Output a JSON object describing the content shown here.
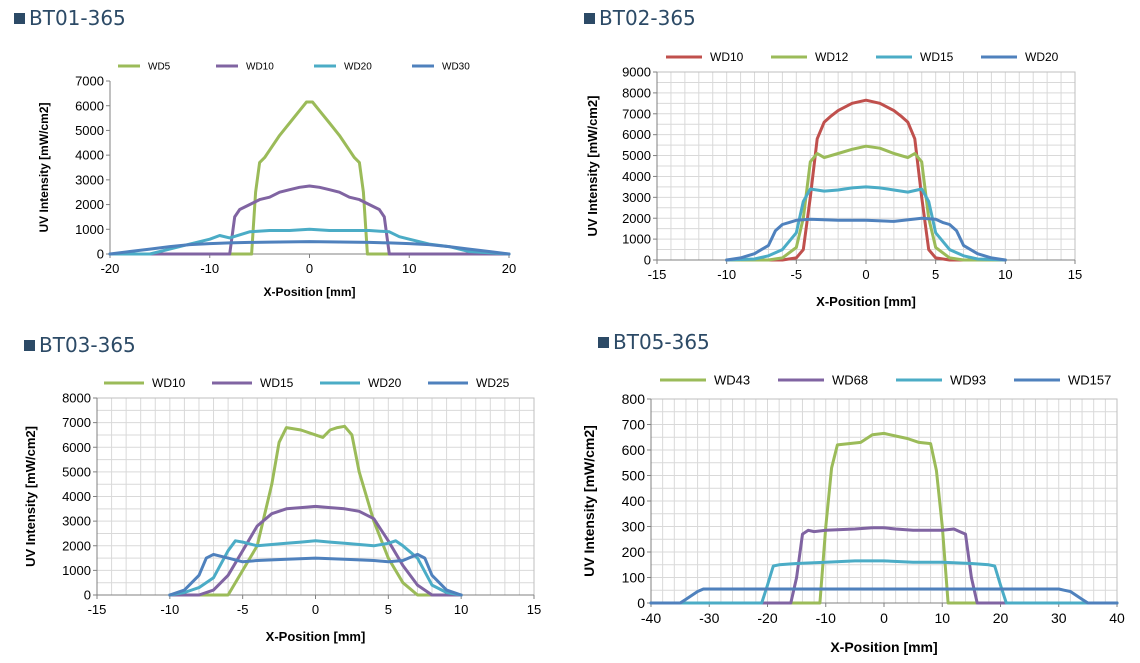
{
  "chart_data": [
    {
      "type": "line",
      "title": "BT01-365",
      "xlabel": "X-Position [mm]",
      "ylabel": "UV Intensity [mW/cm2]",
      "xlim": [
        -20,
        20
      ],
      "ylim": [
        0,
        7000
      ],
      "xticks": [
        -20,
        -10,
        0,
        10,
        20
      ],
      "yticks": [
        0,
        1000,
        2000,
        3000,
        4000,
        5000,
        6000,
        7000
      ],
      "grid": "none",
      "legend": "top",
      "series": [
        {
          "name": "WD5",
          "color": "#9bbb59",
          "x": [
            -20,
            -5.8,
            -5.4,
            -5,
            -4.5,
            -4,
            -3,
            -2,
            -1,
            -0.3,
            0.3,
            1,
            2,
            3,
            4,
            4.5,
            5,
            5.4,
            5.8,
            20
          ],
          "y": [
            0,
            0,
            2500,
            3700,
            3900,
            4200,
            4800,
            5300,
            5800,
            6150,
            6150,
            5800,
            5300,
            4800,
            4200,
            3900,
            3700,
            2500,
            0,
            0
          ]
        },
        {
          "name": "WD10",
          "color": "#8064a2",
          "x": [
            -20,
            -8,
            -7.5,
            -7,
            -6,
            -5,
            -4,
            -3,
            -2,
            -1,
            0,
            1,
            2,
            3,
            4,
            5,
            6,
            7,
            7.5,
            8,
            20
          ],
          "y": [
            0,
            0,
            1500,
            1800,
            2000,
            2200,
            2300,
            2500,
            2600,
            2700,
            2750,
            2700,
            2600,
            2500,
            2300,
            2200,
            2000,
            1800,
            1500,
            0,
            0
          ]
        },
        {
          "name": "WD20",
          "color": "#4bacc6",
          "x": [
            -20,
            -16,
            -14,
            -12,
            -10,
            -9,
            -8,
            -6,
            -4,
            -2,
            0,
            2,
            4,
            6,
            8,
            9,
            10,
            12,
            14,
            16,
            20
          ],
          "y": [
            0,
            0,
            200,
            400,
            600,
            750,
            650,
            900,
            950,
            950,
            1000,
            950,
            950,
            950,
            900,
            700,
            600,
            400,
            300,
            100,
            0
          ]
        },
        {
          "name": "WD30",
          "color": "#4f81bd",
          "x": [
            -20,
            -18,
            -16,
            -14,
            -12,
            -10,
            -8,
            -6,
            -4,
            -2,
            0,
            2,
            4,
            6,
            8,
            10,
            12,
            14,
            16,
            18,
            20
          ],
          "y": [
            0,
            100,
            200,
            300,
            380,
            420,
            450,
            470,
            480,
            490,
            500,
            490,
            480,
            470,
            450,
            420,
            380,
            300,
            200,
            100,
            0
          ]
        }
      ]
    },
    {
      "type": "line",
      "title": "BT02-365",
      "xlabel": "X-Position [mm]",
      "ylabel": "UV Intensity [mW/cm2]",
      "xlim": [
        -15,
        15
      ],
      "ylim": [
        0,
        9000
      ],
      "xticks": [
        -15,
        -10,
        -5,
        0,
        5,
        10,
        15
      ],
      "yticks": [
        0,
        1000,
        2000,
        3000,
        4000,
        5000,
        6000,
        7000,
        8000,
        9000
      ],
      "grid": "both",
      "legend": "top",
      "series": [
        {
          "name": "WD10",
          "color": "#c0504d",
          "x": [
            -10,
            -6,
            -5,
            -4.5,
            -4,
            -3.5,
            -3,
            -2.5,
            -2,
            -1,
            0,
            1,
            2,
            2.5,
            3,
            3.5,
            4,
            4.5,
            5,
            6,
            10
          ],
          "y": [
            0,
            0,
            100,
            500,
            3000,
            5800,
            6600,
            6900,
            7150,
            7500,
            7650,
            7500,
            7150,
            6900,
            6600,
            5800,
            3000,
            500,
            100,
            0,
            0
          ]
        },
        {
          "name": "WD12",
          "color": "#9bbb59",
          "x": [
            -10,
            -7,
            -6,
            -5,
            -4.5,
            -4,
            -3.5,
            -3,
            -2,
            -1,
            0,
            1,
            2,
            3,
            3.5,
            4,
            4.5,
            5,
            6,
            7,
            10
          ],
          "y": [
            0,
            0,
            100,
            600,
            2000,
            4700,
            5100,
            4900,
            5100,
            5300,
            5450,
            5350,
            5100,
            4900,
            5100,
            4700,
            2000,
            600,
            100,
            0,
            0
          ]
        },
        {
          "name": "WD15",
          "color": "#4bacc6",
          "x": [
            -10,
            -8,
            -7,
            -6,
            -5,
            -4.5,
            -4,
            -3,
            -2,
            -1,
            0,
            1,
            2,
            3,
            4,
            4.5,
            5,
            6,
            7,
            8,
            10
          ],
          "y": [
            0,
            50,
            200,
            500,
            1300,
            2800,
            3400,
            3300,
            3350,
            3450,
            3500,
            3450,
            3350,
            3250,
            3400,
            2800,
            1300,
            500,
            200,
            50,
            0
          ]
        },
        {
          "name": "WD20",
          "color": "#4f81bd",
          "x": [
            -10,
            -9,
            -8,
            -7,
            -6.5,
            -6,
            -5.5,
            -5,
            -4,
            -2,
            0,
            2,
            4,
            5,
            5.5,
            6,
            6.5,
            7,
            8,
            9,
            10
          ],
          "y": [
            0,
            100,
            300,
            700,
            1400,
            1700,
            1800,
            1900,
            1950,
            1900,
            1900,
            1850,
            2000,
            1950,
            1800,
            1700,
            1400,
            700,
            300,
            100,
            0
          ]
        }
      ]
    },
    {
      "type": "line",
      "title": "BT03-365",
      "xlabel": "X-Position [mm]",
      "ylabel": "UV Intensity [mW/cm2]",
      "xlim": [
        -15,
        15
      ],
      "ylim": [
        0,
        8000
      ],
      "xticks": [
        -15,
        -10,
        -5,
        0,
        5,
        10,
        15
      ],
      "yticks": [
        0,
        1000,
        2000,
        3000,
        4000,
        5000,
        6000,
        7000,
        8000
      ],
      "grid": "both",
      "legend": "top",
      "series": [
        {
          "name": "WD10",
          "color": "#9bbb59",
          "x": [
            -10,
            -6,
            -5,
            -4,
            -3,
            -2.5,
            -2,
            -1,
            0,
            0.5,
            1,
            1.5,
            2,
            2.5,
            3,
            4,
            5,
            6,
            7,
            10
          ],
          "y": [
            0,
            0,
            1000,
            2000,
            4500,
            6200,
            6800,
            6700,
            6500,
            6400,
            6700,
            6800,
            6850,
            6500,
            5000,
            3000,
            1500,
            500,
            0,
            0
          ]
        },
        {
          "name": "WD15",
          "color": "#8064a2",
          "x": [
            -10,
            -8,
            -7,
            -6,
            -5,
            -4,
            -3,
            -2,
            -1,
            0,
            1,
            2,
            3,
            4,
            5,
            6,
            7,
            8,
            10
          ],
          "y": [
            0,
            0,
            200,
            800,
            1800,
            2800,
            3300,
            3500,
            3550,
            3600,
            3550,
            3500,
            3400,
            3100,
            2200,
            1200,
            400,
            0,
            0
          ]
        },
        {
          "name": "WD20",
          "color": "#4bacc6",
          "x": [
            -10,
            -9,
            -8,
            -7,
            -6,
            -5.5,
            -5,
            -4,
            -3,
            -2,
            -1,
            0,
            1,
            2,
            3,
            4,
            5,
            5.5,
            6,
            7,
            8,
            9,
            10
          ],
          "y": [
            0,
            100,
            300,
            700,
            1800,
            2200,
            2150,
            2000,
            2050,
            2100,
            2150,
            2200,
            2150,
            2100,
            2050,
            2000,
            2100,
            2200,
            2000,
            1500,
            400,
            100,
            0
          ]
        },
        {
          "name": "WD25",
          "color": "#4f81bd",
          "x": [
            -10,
            -9,
            -8,
            -7.5,
            -7,
            -6,
            -5,
            -4,
            -2,
            0,
            2,
            4,
            5,
            6,
            7,
            7.5,
            8,
            9,
            10
          ],
          "y": [
            0,
            200,
            800,
            1500,
            1650,
            1500,
            1350,
            1400,
            1450,
            1500,
            1450,
            1400,
            1350,
            1400,
            1650,
            1500,
            800,
            200,
            0
          ]
        }
      ]
    },
    {
      "type": "line",
      "title": "BT05-365",
      "xlabel": "X-Position [mm]",
      "ylabel": "UV Intensity [mW/cm2]",
      "xlim": [
        -40,
        40
      ],
      "ylim": [
        0,
        800
      ],
      "xticks": [
        -40,
        -30,
        -20,
        -10,
        0,
        10,
        20,
        30,
        40
      ],
      "yticks": [
        0,
        100,
        200,
        300,
        400,
        500,
        600,
        700,
        800
      ],
      "grid": "both",
      "legend": "top",
      "series": [
        {
          "name": "WD43",
          "color": "#9bbb59",
          "x": [
            -40,
            -11,
            -10,
            -9,
            -8,
            -6,
            -4,
            -2,
            0,
            2,
            4,
            6,
            8,
            9,
            10,
            11,
            40
          ],
          "y": [
            0,
            0,
            300,
            530,
            620,
            625,
            630,
            660,
            665,
            655,
            645,
            630,
            625,
            520,
            300,
            0,
            0
          ]
        },
        {
          "name": "WD68",
          "color": "#8064a2",
          "x": [
            -40,
            -16,
            -15,
            -14,
            -13,
            -12,
            -10,
            -5,
            -2,
            0,
            2,
            5,
            10,
            12,
            13,
            14,
            15,
            16,
            40
          ],
          "y": [
            0,
            0,
            100,
            270,
            285,
            280,
            285,
            290,
            295,
            295,
            290,
            285,
            285,
            290,
            280,
            270,
            100,
            0,
            0
          ]
        },
        {
          "name": "WD93",
          "color": "#4bacc6",
          "x": [
            -40,
            -21,
            -20,
            -19,
            -18,
            -15,
            -10,
            -5,
            0,
            5,
            10,
            15,
            18,
            19,
            20,
            21,
            40
          ],
          "y": [
            0,
            0,
            70,
            145,
            150,
            155,
            160,
            165,
            165,
            160,
            160,
            155,
            150,
            145,
            70,
            0,
            0
          ]
        },
        {
          "name": "WD157",
          "color": "#4f81bd",
          "x": [
            -40,
            -35,
            -34,
            -33,
            -32,
            -31,
            -30,
            -20,
            -10,
            0,
            10,
            20,
            30,
            31,
            32,
            33,
            34,
            35,
            40
          ],
          "y": [
            0,
            0,
            15,
            30,
            45,
            55,
            55,
            55,
            55,
            55,
            55,
            55,
            55,
            50,
            45,
            30,
            15,
            0,
            0
          ]
        }
      ]
    }
  ]
}
